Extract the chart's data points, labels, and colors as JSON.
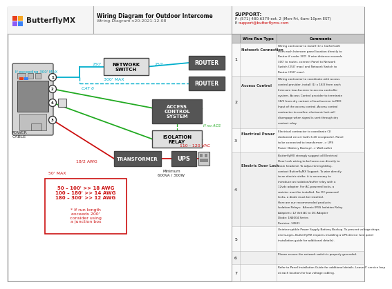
{
  "title": "Wiring Diagram for Outdoor Intercome",
  "subtitle": "Wiring-Diagram-v20-2021-12-08",
  "support_title": "SUPPORT:",
  "support_phone": "P: (571) 480.6379 ext. 2 (Mon-Fri, 6am-10pm EST)",
  "support_email": "support@butterflymx.com",
  "bg_color": "#ffffff",
  "cyan": "#00aecc",
  "green": "#22aa22",
  "red": "#cc1111",
  "dark": "#444444",
  "wire_run_rows": [
    {
      "num": "1",
      "type": "Network Connection",
      "comment": "Wiring contractor to install (1) x Cat5e/Cat6\nfrom each Intercom panel location directly to\nRouter if under 300'. If wire distance exceeds\n300' to router, connect Panel to Network\nSwitch (250' max) and Network Switch to\nRouter (250' max)."
    },
    {
      "num": "2",
      "type": "Access Control",
      "comment": "Wiring contractor to coordinate with access\ncontrol provider, install (1) x 18/2 from each\nIntercom touchscreen to access controller\nsystem. Access Control provider to terminate\n18/2 from dry contact of touchscreen to REX\nInput of the access control. Access control\ncontractor to confirm electronic lock will\ndisengage when signal is sent through dry\ncontact relay."
    },
    {
      "num": "3",
      "type": "Electrical Power",
      "comment": "Electrical contractor to coordinate (1)\ndedicated circuit (with 3-20 receptacle). Panel\nto be connected to transformer -> UPS\nPower (Battery Backup) -> Wall outlet"
    },
    {
      "num": "4",
      "type": "Electric Door Lock",
      "comment": "ButterflyMX strongly suggest all Electrical\nDoor Lock wiring to be home-run directly to\nmain headend. To adjust timing/delay,\ncontact ButterflyMX Support. To wire directly\nto an electric strike, it is necessary to\nintroduce an isolation/buffer relay with a\n12vdc adapter. For AC-powered locks, a\nresistor must be installed. For DC-powered\nlocks, a diode must be installed.\nHere are our recommended products:\nIsolation Relays:  Altronix IR5S Isolation Relay\nAdapters: 12 Volt AC to DC Adapter\nDiode: 1N4004 Series\nResistor: 14501"
    },
    {
      "num": "5",
      "type": "",
      "comment": "Uninterruptible Power Supply Battery Backup. To prevent voltage drops\nand surges, ButterflyMX requires installing a UPS device (see panel\ninstallation guide for additional details)."
    },
    {
      "num": "6",
      "type": "",
      "comment": "Please ensure the network switch is properly grounded."
    },
    {
      "num": "7",
      "type": "",
      "comment": "Refer to Panel Installation Guide for additional details. Leave 6' service loop\nat each location for low voltage cabling."
    }
  ]
}
